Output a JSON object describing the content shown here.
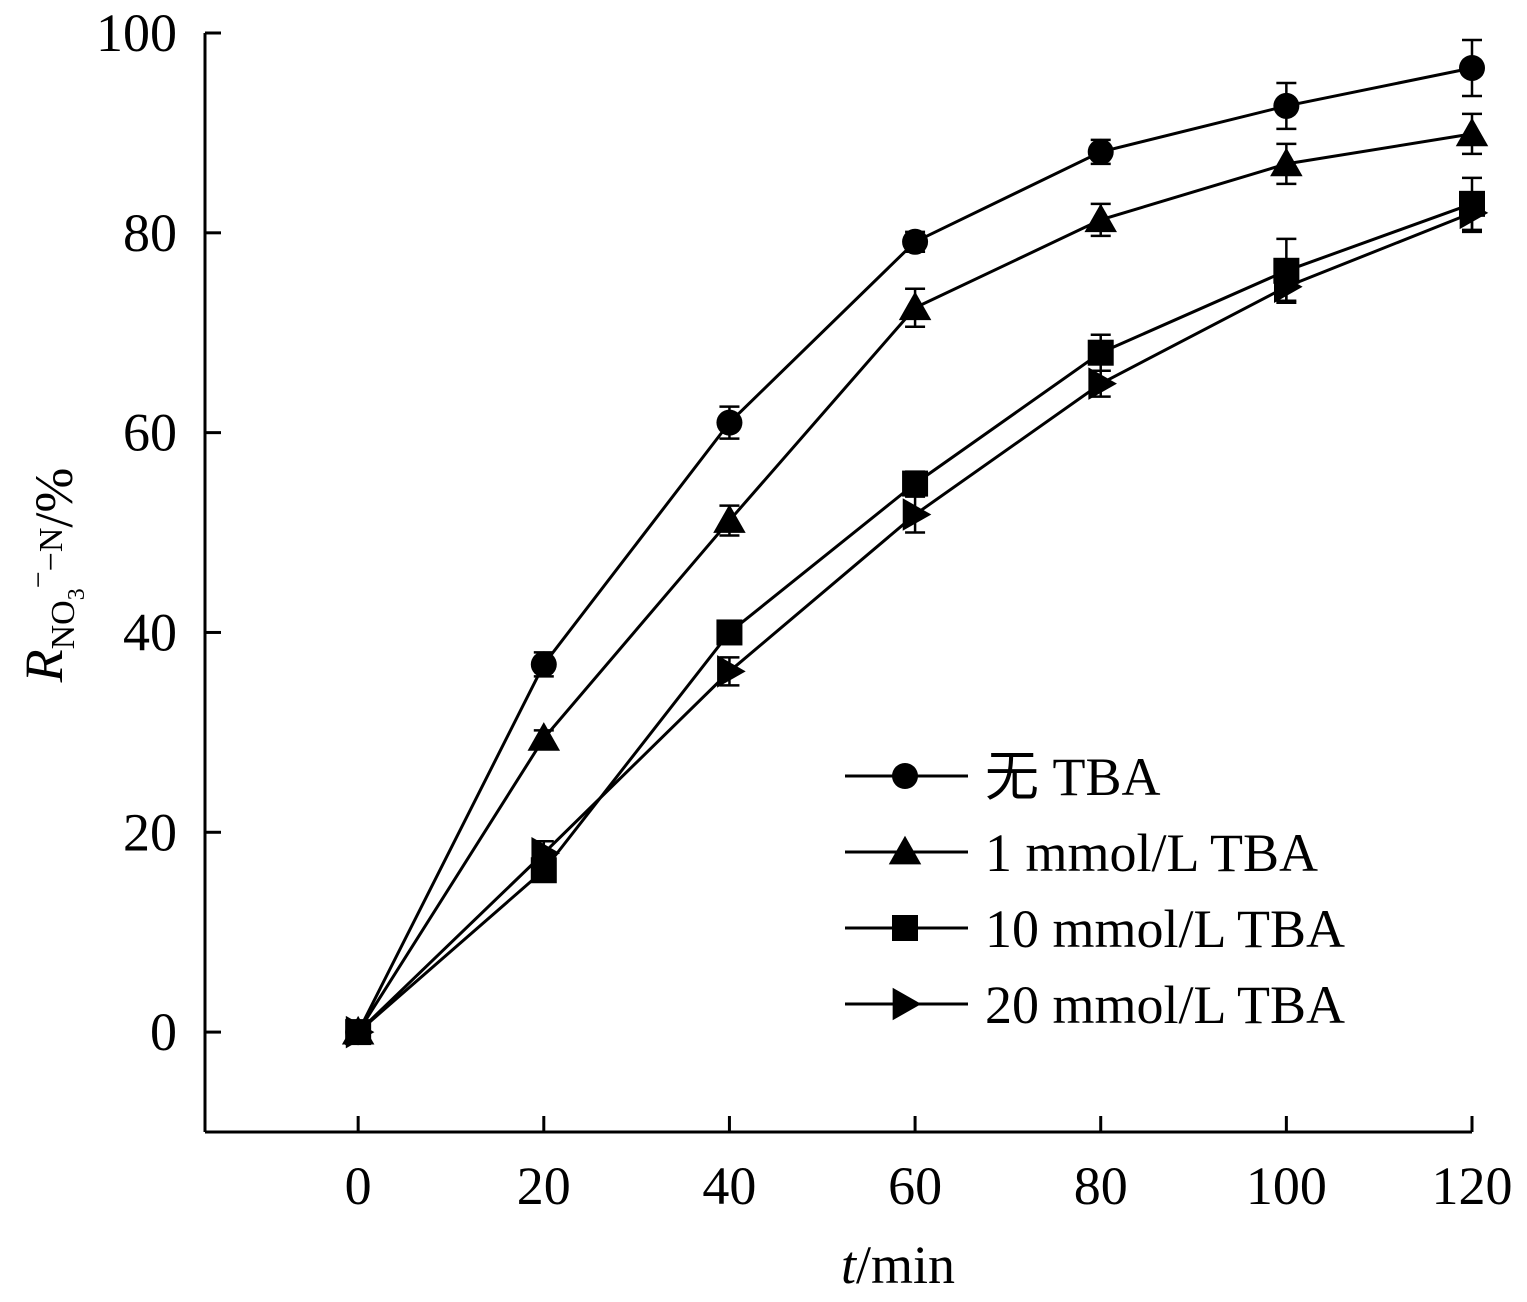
{
  "chart_data": {
    "type": "line",
    "x": [
      0,
      20,
      40,
      60,
      80,
      100,
      120
    ],
    "xlim": [
      -16.5,
      120
    ],
    "ylim": [
      -10,
      100
    ],
    "xticks": [
      0,
      20,
      40,
      60,
      80,
      100,
      120
    ],
    "yticks": [
      0,
      20,
      40,
      60,
      80,
      100
    ],
    "xtick_labels": [
      "0",
      "20",
      "40",
      "60",
      "80",
      "100",
      "120"
    ],
    "ytick_labels": [
      "0",
      "20",
      "40",
      "60",
      "80",
      "100"
    ],
    "xlabel": {
      "italic": "t",
      "rest": "/min"
    },
    "ylabel": {
      "main": "R",
      "sub": "NO",
      "subsub": "3",
      "sup": "−",
      "tail": "−N",
      "unit": "/%"
    },
    "legend_position": "lower-right",
    "grid": false,
    "series": [
      {
        "name": "无 TBA",
        "marker": "circle",
        "values": [
          0,
          36.8,
          61.0,
          79.1,
          88.1,
          92.7,
          96.5
        ],
        "errors": [
          0,
          1.2,
          1.6,
          1.0,
          1.2,
          2.3,
          2.8
        ]
      },
      {
        "name": "1 mmol/L TBA",
        "marker": "triangle",
        "values": [
          0,
          29.4,
          51.2,
          72.5,
          81.3,
          86.9,
          89.9
        ],
        "errors": [
          0,
          0.8,
          1.5,
          1.9,
          1.6,
          2.0,
          2.0
        ]
      },
      {
        "name": "10 mmol/L TBA",
        "marker": "square",
        "values": [
          0,
          16.2,
          40.0,
          54.9,
          68.0,
          76.2,
          82.9
        ],
        "errors": [
          0,
          0.9,
          1.0,
          1.2,
          1.8,
          3.2,
          2.6
        ]
      },
      {
        "name": "20 mmol/L TBA",
        "marker": "triangle-right",
        "values": [
          0,
          17.9,
          36.1,
          51.8,
          64.9,
          74.6,
          82.0
        ],
        "errors": [
          0,
          1.2,
          1.4,
          1.8,
          1.3,
          1.4,
          1.9
        ]
      }
    ]
  }
}
